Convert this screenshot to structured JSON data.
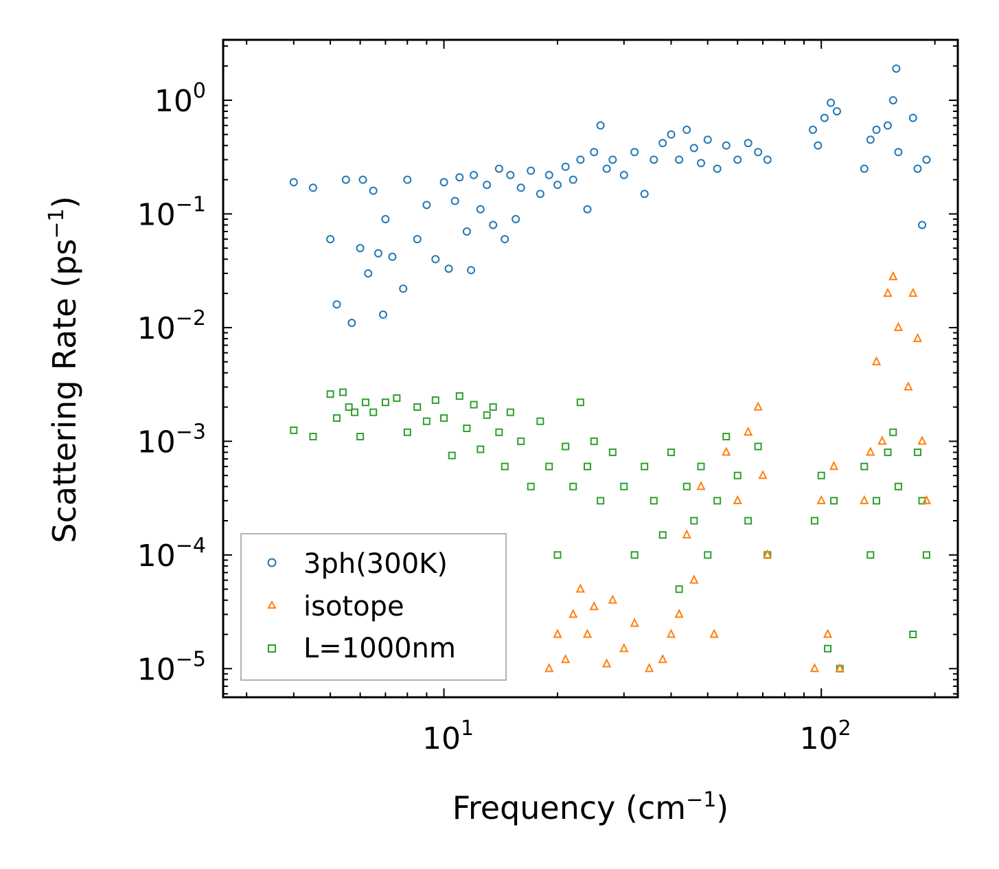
{
  "chart_data": {
    "type": "scatter",
    "xscale": "log",
    "yscale": "log",
    "xlim": [
      2.6,
      230
    ],
    "ylim": [
      5.6e-06,
      3.4
    ],
    "xlabel": "Frequency (cm",
    "xlabel_sup": "−1",
    "xlabel_end": ")",
    "ylabel": "Scattering Rate (ps",
    "ylabel_sup": "−1",
    "ylabel_end": ")",
    "x_ticks": [
      {
        "value": 10,
        "base": "10",
        "exp": "1"
      },
      {
        "value": 100,
        "base": "10",
        "exp": "2"
      }
    ],
    "y_ticks": [
      {
        "value": 1,
        "base": "10",
        "exp": "0"
      },
      {
        "value": 0.1,
        "base": "10",
        "exp": "−1"
      },
      {
        "value": 0.01,
        "base": "10",
        "exp": "−2"
      },
      {
        "value": 0.001,
        "base": "10",
        "exp": "−3"
      },
      {
        "value": 0.0001,
        "base": "10",
        "exp": "−4"
      },
      {
        "value": 1e-05,
        "base": "10",
        "exp": "−5"
      }
    ],
    "legend_position": "lower-left",
    "series": [
      {
        "name": "3ph(300K)",
        "marker": "circle",
        "color": "#1f77b4",
        "x": [
          4.0,
          4.5,
          5.0,
          5.2,
          5.5,
          5.7,
          6.0,
          6.1,
          6.3,
          6.5,
          6.7,
          6.9,
          7.0,
          7.3,
          7.8,
          8.0,
          8.5,
          9.0,
          9.5,
          10.0,
          10.3,
          10.7,
          11.0,
          11.5,
          11.8,
          12.0,
          12.5,
          13.0,
          13.5,
          14.0,
          14.5,
          15.0,
          15.5,
          16.0,
          17.0,
          18.0,
          19.0,
          20.0,
          21.0,
          22.0,
          23.0,
          24.0,
          25.0,
          26.0,
          27.0,
          28.0,
          30.0,
          32.0,
          34.0,
          36.0,
          38.0,
          40.0,
          42.0,
          44.0,
          46.0,
          48.0,
          50.0,
          53.0,
          56.0,
          60.0,
          64.0,
          68.0,
          72.0,
          95.0,
          98.0,
          102.0,
          106.0,
          110.0,
          130.0,
          135.0,
          140.0,
          150.0,
          155.0,
          158.0,
          160.0,
          175.0,
          180.0,
          185.0,
          190.0
        ],
        "y": [
          0.19,
          0.17,
          0.06,
          0.016,
          0.2,
          0.011,
          0.05,
          0.2,
          0.03,
          0.16,
          0.045,
          0.013,
          0.09,
          0.042,
          0.022,
          0.2,
          0.06,
          0.12,
          0.04,
          0.19,
          0.033,
          0.13,
          0.21,
          0.07,
          0.032,
          0.22,
          0.11,
          0.18,
          0.08,
          0.25,
          0.06,
          0.22,
          0.09,
          0.17,
          0.24,
          0.15,
          0.22,
          0.18,
          0.26,
          0.2,
          0.3,
          0.11,
          0.35,
          0.6,
          0.25,
          0.3,
          0.22,
          0.35,
          0.15,
          0.3,
          0.42,
          0.5,
          0.3,
          0.55,
          0.38,
          0.28,
          0.45,
          0.25,
          0.4,
          0.3,
          0.42,
          0.35,
          0.3,
          0.55,
          0.4,
          0.7,
          0.95,
          0.8,
          0.25,
          0.45,
          0.55,
          0.6,
          1.0,
          1.9,
          0.35,
          0.7,
          0.25,
          0.08,
          0.3
        ]
      },
      {
        "name": "isotope",
        "marker": "triangle",
        "color": "#ff7f0e",
        "x": [
          19.0,
          20.0,
          21.0,
          22.0,
          23.0,
          24.0,
          25.0,
          27.0,
          28.0,
          30.0,
          32.0,
          35.0,
          38.0,
          40.0,
          42.0,
          44.0,
          46.0,
          48.0,
          52.0,
          56.0,
          60.0,
          64.0,
          68.0,
          70.0,
          72.0,
          96.0,
          100.0,
          104.0,
          108.0,
          112.0,
          130.0,
          135.0,
          140.0,
          145.0,
          150.0,
          155.0,
          160.0,
          170.0,
          175.0,
          180.0,
          185.0,
          190.0
        ],
        "y": [
          1e-05,
          2e-05,
          1.2e-05,
          3e-05,
          5e-05,
          2e-05,
          3.5e-05,
          1.1e-05,
          4e-05,
          1.5e-05,
          2.5e-05,
          1e-05,
          1.2e-05,
          2e-05,
          3e-05,
          0.00015,
          6e-05,
          0.0004,
          2e-05,
          0.0008,
          0.0003,
          0.0012,
          0.002,
          0.0005,
          0.0001,
          1e-05,
          0.0003,
          2e-05,
          0.0006,
          1e-05,
          0.0003,
          0.0008,
          0.005,
          0.001,
          0.02,
          0.028,
          0.01,
          0.003,
          0.02,
          0.008,
          0.001,
          0.0003
        ]
      },
      {
        "name": "L=1000nm",
        "marker": "square",
        "color": "#2ca02c",
        "x": [
          4.0,
          4.5,
          5.0,
          5.2,
          5.4,
          5.6,
          5.8,
          6.0,
          6.2,
          6.5,
          7.0,
          7.5,
          8.0,
          8.5,
          9.0,
          9.5,
          10.0,
          10.5,
          11.0,
          11.5,
          12.0,
          12.5,
          13.0,
          13.5,
          14.0,
          14.5,
          15.0,
          16.0,
          17.0,
          18.0,
          19.0,
          20.0,
          21.0,
          22.0,
          23.0,
          24.0,
          25.0,
          26.0,
          28.0,
          30.0,
          32.0,
          34.0,
          36.0,
          38.0,
          40.0,
          42.0,
          44.0,
          46.0,
          48.0,
          50.0,
          53.0,
          56.0,
          60.0,
          64.0,
          68.0,
          72.0,
          96.0,
          100.0,
          104.0,
          108.0,
          112.0,
          130.0,
          135.0,
          140.0,
          150.0,
          155.0,
          160.0,
          175.0,
          180.0,
          185.0,
          190.0
        ],
        "y": [
          0.00125,
          0.0011,
          0.0026,
          0.0016,
          0.0027,
          0.002,
          0.0018,
          0.0011,
          0.0022,
          0.0018,
          0.0022,
          0.0024,
          0.0012,
          0.002,
          0.0015,
          0.0023,
          0.0016,
          0.00075,
          0.0025,
          0.0013,
          0.0021,
          0.00085,
          0.0017,
          0.002,
          0.0012,
          0.0006,
          0.0018,
          0.001,
          0.0004,
          0.0015,
          0.0006,
          0.0001,
          0.0009,
          0.0004,
          0.0022,
          0.0006,
          0.001,
          0.0003,
          0.0008,
          0.0004,
          0.0001,
          0.0006,
          0.0003,
          0.00015,
          0.0008,
          5e-05,
          0.0004,
          0.0002,
          0.0006,
          0.0001,
          0.0003,
          0.0011,
          0.0005,
          0.0002,
          0.0009,
          0.0001,
          0.0002,
          0.0005,
          1.5e-05,
          0.0003,
          1e-05,
          0.0006,
          0.0001,
          0.0003,
          0.0008,
          0.0012,
          0.0004,
          2e-05,
          0.0008,
          0.0003,
          0.0001
        ]
      }
    ]
  }
}
